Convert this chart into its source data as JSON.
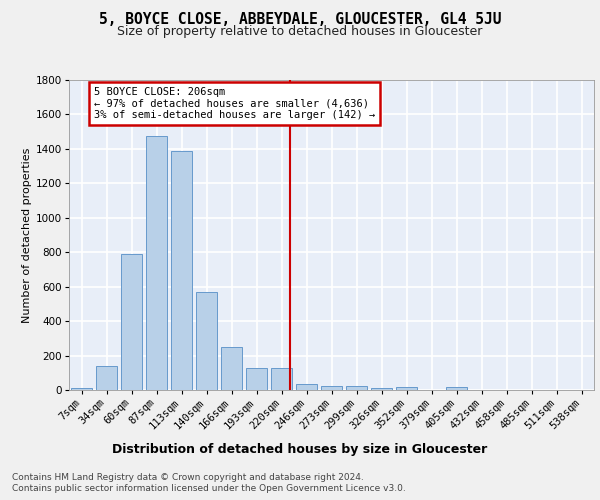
{
  "title": "5, BOYCE CLOSE, ABBEYDALE, GLOUCESTER, GL4 5JU",
  "subtitle": "Size of property relative to detached houses in Gloucester",
  "xlabel": "Distribution of detached houses by size in Gloucester",
  "ylabel": "Number of detached properties",
  "categories": [
    "7sqm",
    "34sqm",
    "60sqm",
    "87sqm",
    "113sqm",
    "140sqm",
    "166sqm",
    "193sqm",
    "220sqm",
    "246sqm",
    "273sqm",
    "299sqm",
    "326sqm",
    "352sqm",
    "379sqm",
    "405sqm",
    "432sqm",
    "458sqm",
    "485sqm",
    "511sqm",
    "538sqm"
  ],
  "values": [
    10,
    140,
    790,
    1475,
    1390,
    570,
    250,
    125,
    125,
    35,
    25,
    25,
    10,
    20,
    0,
    20,
    0,
    0,
    0,
    0,
    0
  ],
  "bar_color": "#b8d0e8",
  "bar_edge_color": "#6699cc",
  "background_color": "#e8eef8",
  "grid_color": "#ffffff",
  "vline_x": 8.35,
  "vline_color": "#cc0000",
  "annotation_text": "5 BOYCE CLOSE: 206sqm\n← 97% of detached houses are smaller (4,636)\n3% of semi-detached houses are larger (142) →",
  "annotation_box_color": "#cc0000",
  "footer_line1": "Contains HM Land Registry data © Crown copyright and database right 2024.",
  "footer_line2": "Contains public sector information licensed under the Open Government Licence v3.0.",
  "ylim": [
    0,
    1800
  ],
  "yticks": [
    0,
    200,
    400,
    600,
    800,
    1000,
    1200,
    1400,
    1600,
    1800
  ],
  "title_fontsize": 10.5,
  "subtitle_fontsize": 9,
  "xlabel_fontsize": 9,
  "ylabel_fontsize": 8,
  "tick_fontsize": 7.5,
  "annotation_fontsize": 7.5,
  "footer_fontsize": 6.5,
  "fig_facecolor": "#f0f0f0"
}
